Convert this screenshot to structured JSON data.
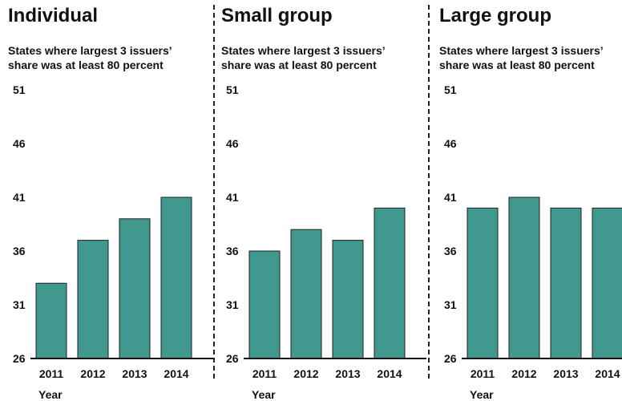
{
  "chart_data": [
    {
      "type": "bar",
      "title": "Individual",
      "subtitle": "States where largest 3 issuers' share was at least 80 percent",
      "xlabel": "Year",
      "ylabel": "",
      "categories": [
        "2011",
        "2012",
        "2013",
        "2014"
      ],
      "values": [
        33,
        37,
        39,
        41
      ],
      "yticks": [
        26,
        31,
        36,
        41,
        46,
        51
      ],
      "ylim": [
        26,
        51
      ],
      "bar_color": "#40988f"
    },
    {
      "type": "bar",
      "title": "Small group",
      "subtitle": "States where largest 3 issuers' share was at least 80 percent",
      "xlabel": "Year",
      "ylabel": "",
      "categories": [
        "2011",
        "2012",
        "2013",
        "2014"
      ],
      "values": [
        36,
        38,
        37,
        40
      ],
      "yticks": [
        26,
        31,
        36,
        41,
        46,
        51
      ],
      "ylim": [
        26,
        51
      ],
      "bar_color": "#40988f"
    },
    {
      "type": "bar",
      "title": "Large group",
      "subtitle": "States where largest 3 issuers' share was at least 80 percent",
      "xlabel": "Year",
      "ylabel": "",
      "categories": [
        "2011",
        "2012",
        "2013",
        "2014"
      ],
      "values": [
        40,
        41,
        40,
        40
      ],
      "yticks": [
        26,
        31,
        36,
        41,
        46,
        51
      ],
      "ylim": [
        26,
        51
      ],
      "bar_color": "#40988f"
    }
  ]
}
